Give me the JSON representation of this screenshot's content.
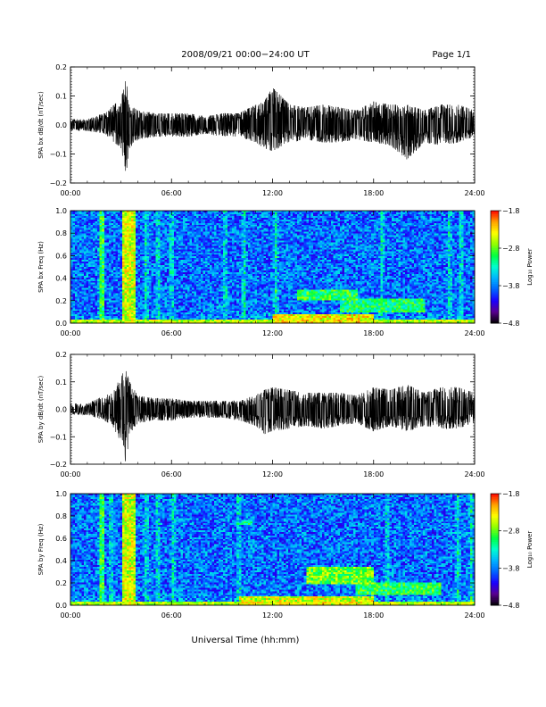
{
  "header": {
    "date_range": "2008/09/21  00:00−24:00 UT",
    "page": "Page 1/1"
  },
  "footer": {
    "xlabel": "Universal Time (hh:mm)"
  },
  "chart_data": [
    {
      "type": "line",
      "ylabel": "SPA bx dB/dt (nT/sec)",
      "x_ticks": [
        "00:00",
        "06:00",
        "12:00",
        "18:00",
        "24:00"
      ],
      "y_ticks": [
        "0.2",
        "0.1",
        "0.0",
        "−0.1",
        "−0.2"
      ],
      "xlim": [
        0,
        24
      ],
      "ylim": [
        -0.2,
        0.2
      ],
      "color": "#000000",
      "envelope": {
        "hours": [
          0,
          1,
          2,
          3.0,
          3.3,
          3.5,
          4,
          5,
          6,
          7,
          8,
          9,
          10,
          11,
          11.5,
          12,
          13,
          14,
          15,
          16,
          17,
          18,
          19,
          20,
          21,
          22,
          23,
          24
        ],
        "max": [
          0.02,
          0.02,
          0.04,
          0.09,
          0.16,
          0.07,
          0.05,
          0.04,
          0.04,
          0.04,
          0.03,
          0.04,
          0.04,
          0.07,
          0.08,
          0.13,
          0.07,
          0.06,
          0.07,
          0.06,
          0.05,
          0.08,
          0.07,
          0.07,
          0.05,
          0.07,
          0.07,
          0.05
        ],
        "min": [
          -0.02,
          -0.02,
          -0.03,
          -0.08,
          -0.17,
          -0.08,
          -0.05,
          -0.04,
          -0.04,
          -0.04,
          -0.03,
          -0.04,
          -0.04,
          -0.06,
          -0.08,
          -0.09,
          -0.06,
          -0.05,
          -0.06,
          -0.06,
          -0.05,
          -0.06,
          -0.07,
          -0.12,
          -0.06,
          -0.07,
          -0.06,
          -0.04
        ]
      }
    },
    {
      "type": "heatmap",
      "ylabel": "SPA bx Freq (Hz)",
      "colorbar_label": "Log₁₀ Power",
      "colorbar_ticks": [
        "−1.8",
        "−2.8",
        "−3.8",
        "−4.8"
      ],
      "clim": [
        -4.8,
        -1.8
      ],
      "colormap": [
        "#000000",
        "#5a0090",
        "#1a00ff",
        "#0064ff",
        "#00b4ff",
        "#00ffd0",
        "#00ff40",
        "#90ff00",
        "#ffff00",
        "#ffa000",
        "#ff0000"
      ],
      "x_ticks": [
        "00:00",
        "06:00",
        "12:00",
        "18:00",
        "24:00"
      ],
      "y_ticks": [
        "1.0",
        "0.8",
        "0.6",
        "0.4",
        "0.2",
        "0.0"
      ],
      "xlim": [
        0,
        24
      ],
      "ylim": [
        0,
        1
      ],
      "base_power": -3.85,
      "bright_bands_hours": [
        1.8,
        3.2,
        3.35,
        3.5,
        4.5,
        5.2,
        6.0,
        9.2,
        10.3,
        12.2,
        18.5,
        22.5,
        23.2
      ],
      "features": [
        {
          "t0": 3.1,
          "t1": 3.8,
          "f0": 0.0,
          "f1": 1.0,
          "power": -2.5
        },
        {
          "t0": 1.8,
          "t1": 2.05,
          "f0": 0.0,
          "f1": 1.0,
          "power": -3.0
        },
        {
          "t0": 12.0,
          "t1": 18.0,
          "f0": 0.0,
          "f1": 0.08,
          "power": -2.4
        },
        {
          "t0": 13.5,
          "t1": 17.0,
          "f0": 0.2,
          "f1": 0.3,
          "power": -3.0
        },
        {
          "t0": 16.0,
          "t1": 21.0,
          "f0": 0.1,
          "f1": 0.22,
          "power": -3.1
        }
      ]
    },
    {
      "type": "line",
      "ylabel": "SPA by dB/dt (nT/sec)",
      "x_ticks": [
        "00:00",
        "06:00",
        "12:00",
        "18:00",
        "24:00"
      ],
      "y_ticks": [
        "0.2",
        "0.1",
        "0.0",
        "−0.1",
        "−0.2"
      ],
      "xlim": [
        0,
        24
      ],
      "ylim": [
        -0.2,
        0.2
      ],
      "color": "#000000",
      "envelope": {
        "hours": [
          0,
          1,
          2,
          2.5,
          3.0,
          3.3,
          3.5,
          4,
          5,
          6,
          7,
          8,
          9,
          10,
          11,
          11.5,
          12,
          13,
          14,
          15,
          16,
          17,
          18,
          19,
          20,
          21,
          22,
          23,
          24
        ],
        "max": [
          0.02,
          0.02,
          0.05,
          0.06,
          0.12,
          0.15,
          0.1,
          0.05,
          0.04,
          0.04,
          0.03,
          0.03,
          0.03,
          0.03,
          0.05,
          0.07,
          0.08,
          0.07,
          0.06,
          0.06,
          0.06,
          0.05,
          0.08,
          0.07,
          0.09,
          0.06,
          0.08,
          0.08,
          0.06
        ],
        "min": [
          -0.02,
          -0.02,
          -0.04,
          -0.06,
          -0.12,
          -0.2,
          -0.09,
          -0.05,
          -0.04,
          -0.04,
          -0.03,
          -0.03,
          -0.03,
          -0.04,
          -0.06,
          -0.09,
          -0.08,
          -0.07,
          -0.06,
          -0.07,
          -0.06,
          -0.05,
          -0.08,
          -0.06,
          -0.08,
          -0.06,
          -0.07,
          -0.07,
          -0.05
        ]
      }
    },
    {
      "type": "heatmap",
      "ylabel": "SPA by Freq (Hz)",
      "colorbar_label": "Log₁₀ Power",
      "colorbar_ticks": [
        "−1.8",
        "−2.8",
        "−3.8",
        "−4.8"
      ],
      "clim": [
        -4.8,
        -1.8
      ],
      "colormap": [
        "#000000",
        "#5a0090",
        "#1a00ff",
        "#0064ff",
        "#00b4ff",
        "#00ffd0",
        "#00ff40",
        "#90ff00",
        "#ffff00",
        "#ffa000",
        "#ff0000"
      ],
      "x_ticks": [
        "00:00",
        "06:00",
        "12:00",
        "18:00",
        "24:00"
      ],
      "y_ticks": [
        "1.0",
        "0.8",
        "0.6",
        "0.4",
        "0.2",
        "0.0"
      ],
      "xlim": [
        0,
        24
      ],
      "ylim": [
        0,
        1
      ],
      "base_power": -3.85,
      "bright_bands_hours": [
        1.8,
        2.4,
        3.2,
        3.35,
        3.5,
        4.5,
        5.2,
        6.1,
        10.0,
        18.8,
        23.0,
        23.8
      ],
      "features": [
        {
          "t0": 3.1,
          "t1": 3.8,
          "f0": 0.0,
          "f1": 1.0,
          "power": -2.5
        },
        {
          "t0": 1.8,
          "t1": 2.05,
          "f0": 0.0,
          "f1": 1.0,
          "power": -3.0
        },
        {
          "t0": 10.0,
          "t1": 18.0,
          "f0": 0.0,
          "f1": 0.08,
          "power": -2.5
        },
        {
          "t0": 14.0,
          "t1": 18.0,
          "f0": 0.18,
          "f1": 0.35,
          "power": -2.8
        },
        {
          "t0": 17.0,
          "t1": 22.0,
          "f0": 0.1,
          "f1": 0.2,
          "power": -3.0
        },
        {
          "t0": 10.2,
          "t1": 10.8,
          "f0": 0.72,
          "f1": 0.76,
          "power": -3.0
        }
      ]
    }
  ]
}
